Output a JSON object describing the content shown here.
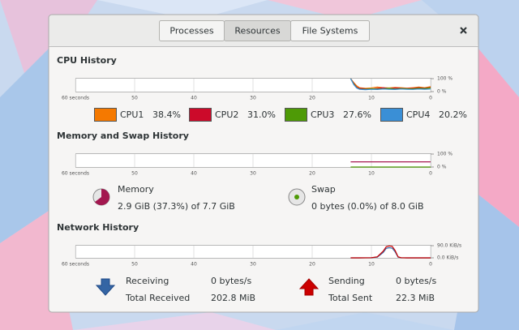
{
  "tabs": [
    "Processes",
    "Resources",
    "File Systems"
  ],
  "active_tab": 1,
  "chart_data": [
    {
      "type": "line",
      "title": "CPU History",
      "x": [
        13.5,
        13,
        12.5,
        12,
        11,
        10,
        9,
        8,
        7,
        6,
        5,
        4,
        3,
        2,
        1,
        0
      ],
      "xlim": [
        60,
        0
      ],
      "xticks": [
        {
          "value": 60,
          "label": "60 seconds"
        },
        50,
        40,
        30,
        20,
        10,
        0
      ],
      "ylim": [
        0,
        100
      ],
      "yticks": [
        {
          "value": 100,
          "label": "100 %"
        },
        {
          "value": 0,
          "label": "0 %"
        }
      ],
      "grid": true,
      "series": [
        {
          "name": "CPU1",
          "legend_value": "38.4%",
          "color": "#f57900",
          "values": [
            100,
            70,
            45,
            30,
            25,
            28,
            35,
            30,
            28,
            32,
            30,
            27,
            30,
            35,
            30,
            38
          ]
        },
        {
          "name": "CPU2",
          "legend_value": "31.0%",
          "color": "#cc0a2a",
          "values": [
            100,
            65,
            35,
            25,
            22,
            20,
            25,
            30,
            24,
            28,
            26,
            24,
            25,
            30,
            27,
            31
          ]
        },
        {
          "name": "CPU3",
          "legend_value": "27.6%",
          "color": "#4e9a06",
          "values": [
            100,
            60,
            30,
            20,
            18,
            22,
            20,
            22,
            25,
            20,
            24,
            22,
            21,
            25,
            24,
            28
          ]
        },
        {
          "name": "CPU4",
          "legend_value": "20.2%",
          "color": "#3a8fd6",
          "values": [
            100,
            55,
            28,
            18,
            15,
            18,
            16,
            20,
            18,
            16,
            20,
            18,
            17,
            20,
            18,
            20
          ]
        }
      ]
    },
    {
      "type": "line",
      "title": "Memory and Swap History",
      "x": [
        13.5,
        0
      ],
      "xlim": [
        60,
        0
      ],
      "xticks": [
        {
          "value": 60,
          "label": "60 seconds"
        },
        50,
        40,
        30,
        20,
        10,
        0
      ],
      "ylim": [
        0,
        100
      ],
      "yticks": [
        {
          "value": 100,
          "label": "100 %"
        },
        {
          "value": 0,
          "label": "0 %"
        }
      ],
      "grid": true,
      "series": [
        {
          "name": "Memory",
          "detail": "2.9 GiB (37.3%) of 7.7 GiB",
          "color": "#a3174f",
          "values": [
            40,
            40
          ]
        },
        {
          "name": "Swap",
          "detail": "0 bytes (0.0%) of 8.0 GiB",
          "color": "#4e9a06",
          "values": [
            0,
            0
          ]
        }
      ]
    },
    {
      "type": "line",
      "title": "Network History",
      "x": [
        13.5,
        12,
        10,
        9,
        8,
        7.5,
        7,
        6.5,
        6,
        5.5,
        5,
        4,
        2,
        0
      ],
      "xlim": [
        60,
        0
      ],
      "xticks": [
        {
          "value": 60,
          "label": "60 seconds"
        },
        50,
        40,
        30,
        20,
        10,
        0
      ],
      "ylim": [
        0,
        90
      ],
      "yticks": [
        {
          "value": 90,
          "label": "90.0 KiB/s"
        },
        {
          "value": 0,
          "label": "0.0 KiB/s"
        }
      ],
      "grid": true,
      "series": [
        {
          "name": "Receiving",
          "rate": "0 bytes/s",
          "total_label": "Total Received",
          "total": "202.8 MiB",
          "color": "#3465a4",
          "values": [
            0,
            0,
            1,
            5,
            40,
            70,
            75,
            72,
            45,
            5,
            1,
            0,
            0,
            0
          ]
        },
        {
          "name": "Sending",
          "rate": "0 bytes/s",
          "total_label": "Total Sent",
          "total": "22.3 MiB",
          "color": "#cc0000",
          "values": [
            0,
            0,
            1,
            8,
            50,
            82,
            88,
            85,
            55,
            8,
            1,
            0,
            0,
            0
          ]
        }
      ]
    }
  ]
}
